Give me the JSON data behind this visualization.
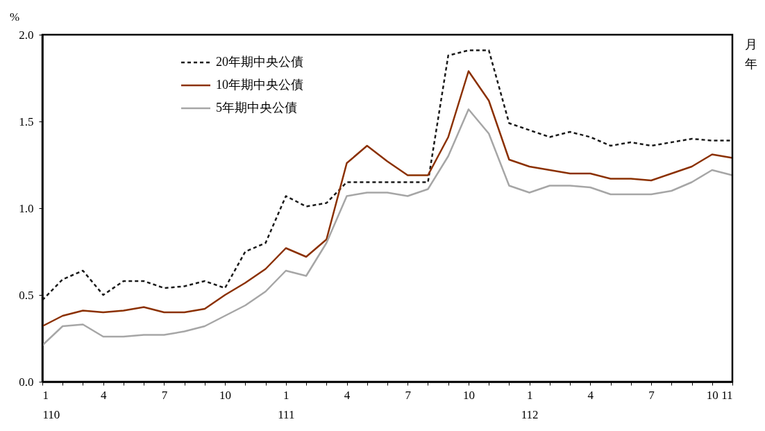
{
  "chart_data": {
    "type": "line",
    "ylabel": "%",
    "xlabel": "月年",
    "categories": [
      "1\n110",
      null,
      null,
      "4",
      null,
      null,
      "7",
      null,
      null,
      "10",
      null,
      null,
      "1\n111",
      null,
      null,
      "4",
      null,
      null,
      "7",
      null,
      null,
      "10",
      null,
      null,
      "1\n112",
      null,
      null,
      "4",
      null,
      null,
      "7",
      null,
      null,
      "10",
      "11"
    ],
    "series": [
      {
        "name": "20年期中央公債",
        "color": "#1a1a1a",
        "line_style": "dashed",
        "values": [
          0.47,
          0.59,
          0.64,
          0.5,
          0.58,
          0.58,
          0.54,
          0.55,
          0.58,
          0.54,
          0.75,
          0.8,
          1.07,
          1.01,
          1.03,
          1.15,
          1.15,
          1.15,
          1.15,
          1.15,
          1.88,
          1.91,
          1.91,
          1.49,
          1.45,
          1.41,
          1.44,
          1.41,
          1.36,
          1.38,
          1.36,
          1.38,
          1.4,
          1.39,
          1.39
        ]
      },
      {
        "name": "10年期中央公債",
        "color": "#8b3000",
        "line_style": "solid",
        "values": [
          0.32,
          0.38,
          0.41,
          0.4,
          0.41,
          0.43,
          0.4,
          0.4,
          0.42,
          0.5,
          0.57,
          0.65,
          0.77,
          0.72,
          0.82,
          1.26,
          1.36,
          1.27,
          1.19,
          1.19,
          1.41,
          1.79,
          1.62,
          1.28,
          1.24,
          1.22,
          1.2,
          1.2,
          1.17,
          1.17,
          1.16,
          1.2,
          1.24,
          1.31,
          1.29
        ]
      },
      {
        "name": "5年期中央公債",
        "color": "#a6a6a6",
        "line_style": "solid",
        "values": [
          0.21,
          0.32,
          0.33,
          0.26,
          0.26,
          0.27,
          0.27,
          0.29,
          0.32,
          0.38,
          0.44,
          0.52,
          0.64,
          0.61,
          0.8,
          1.07,
          1.09,
          1.09,
          1.07,
          1.11,
          1.3,
          1.57,
          1.43,
          1.13,
          1.09,
          1.13,
          1.13,
          1.12,
          1.08,
          1.08,
          1.08,
          1.1,
          1.15,
          1.22,
          1.19
        ]
      }
    ],
    "ylim": [
      0,
      2.0
    ],
    "yticks": [
      {
        "value": 0,
        "label": "0.0"
      },
      {
        "value": 0.5,
        "label": "0.5"
      },
      {
        "value": 1.0,
        "label": "1.0"
      },
      {
        "value": 1.5,
        "label": "1.5"
      },
      {
        "value": 2.0,
        "label": "2.0"
      }
    ],
    "grid": false,
    "legend": "top left",
    "marker": "none"
  }
}
